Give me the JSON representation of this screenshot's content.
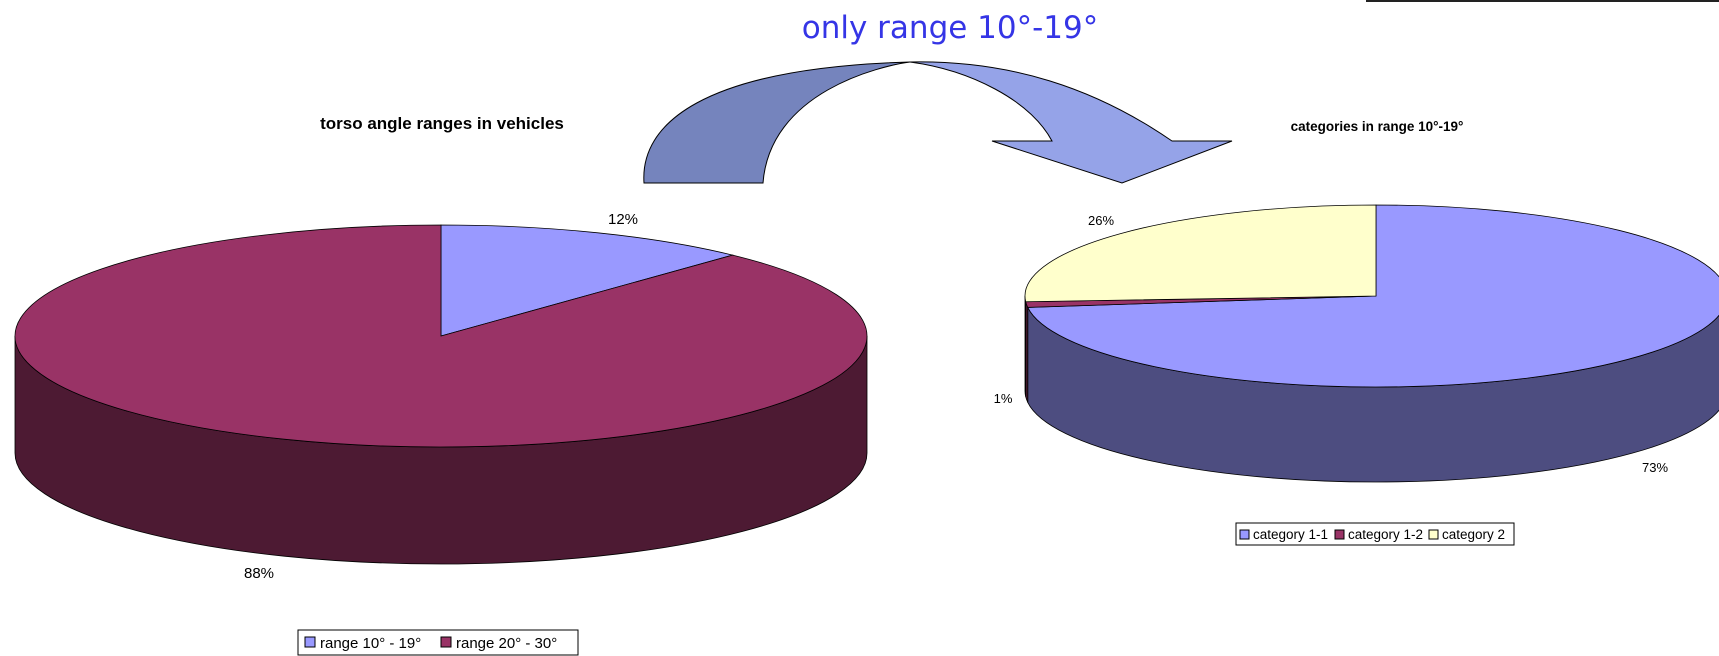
{
  "headline": "only range 10°-19°",
  "colors": {
    "range_10_19": "#9999ff",
    "range_20_30": "#993366",
    "category_1_1": "#9999ff",
    "category_1_2": "#993366",
    "category_2": "#ffffcc",
    "arrow_dark": "#7584bd",
    "arrow_light": "#95a3e8",
    "headline": "#3535e6"
  },
  "chart_data": [
    {
      "type": "pie",
      "title": "torso angle ranges in vehicles",
      "style": "3d",
      "legend_position": "bottom",
      "slices": [
        {
          "label": "range 10° - 19°",
          "value": 12,
          "data_label": "12%"
        },
        {
          "label": "range 20° - 30°",
          "value": 88,
          "data_label": "88%"
        }
      ]
    },
    {
      "type": "pie",
      "title": "categories in range 10°-19°",
      "style": "3d",
      "legend_position": "bottom",
      "slices": [
        {
          "label": "category 1-1",
          "value": 73,
          "data_label": "73%"
        },
        {
          "label": "category 1-2",
          "value": 1,
          "data_label": "1%"
        },
        {
          "label": "category 2",
          "value": 26,
          "data_label": "26%"
        }
      ]
    }
  ]
}
